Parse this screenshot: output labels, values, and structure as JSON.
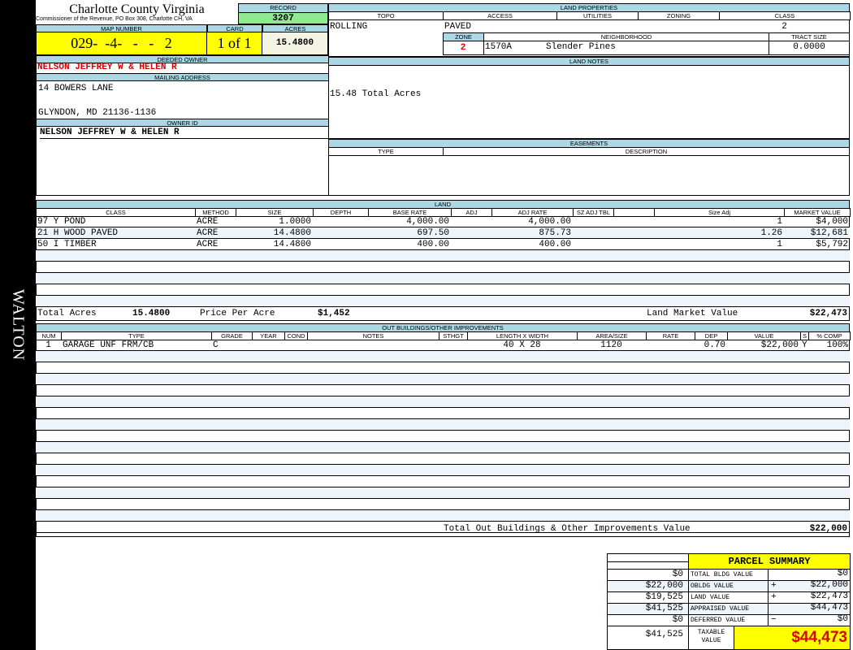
{
  "sidebar": {
    "district": "WALTON"
  },
  "header": {
    "county": "Charlotte County Virginia",
    "office": "Commissioner of the Revenue, PO Box 308, Charlotte CH, VA",
    "record_label": "RECORD",
    "record": "3207",
    "map_label": "MAP NUMBER",
    "map_number": "029-  -4-   -   -   2",
    "card_label": "CARD",
    "card": "1 of 1",
    "acres_label": "ACRES",
    "acres": "15.4800"
  },
  "owner": {
    "deeded_label": "DEEDED OWNER",
    "deeded": "NELSON JEFFREY W & HELEN R",
    "mailing_label": "MAILING ADDRESS",
    "address1": "14 BOWERS LANE",
    "address2": "GLYNDON, MD 21136-1136",
    "id_label": "OWNER ID",
    "id": "NELSON JEFFREY W & HELEN R"
  },
  "land_properties": {
    "title": "LAND PROPERTIES",
    "headers": [
      "TOPO",
      "ACCESS",
      "UTILITIES",
      "ZONING",
      "CLASS"
    ],
    "topo": "ROLLING",
    "access": "PAVED",
    "class": "2",
    "zone_label": "ZONE",
    "neighborhood_label": "NEIGHBORHOOD",
    "tract_label": "TRACT SIZE",
    "zone": "2",
    "neighborhood_code": "1570A",
    "neighborhood": "Slender Pines",
    "tract": "0.0000"
  },
  "land_notes": {
    "title": "LAND NOTES",
    "text": "15.48 Total Acres"
  },
  "easements": {
    "title": "EASEMENTS",
    "headers": [
      "TYPE",
      "DESCRIPTION"
    ]
  },
  "land": {
    "title": "LAND",
    "headers": [
      "CLASS",
      "METHOD",
      "SIZE",
      "DEPTH",
      "BASE RATE",
      "ADJ",
      "ADJ RATE",
      "SZ ADJ TBL",
      "",
      "Size Adj",
      "MARKET VALUE"
    ],
    "rows": [
      [
        "97 Y POND",
        "ACRE",
        "1.0000",
        "",
        "4,000.00",
        "",
        "4,000.00",
        "",
        "",
        "1",
        "$4,000"
      ],
      [
        "21 H WOOD PAVED",
        "ACRE",
        "14.4800",
        "",
        "697.50",
        "",
        "875.73",
        "",
        "",
        "1.26",
        "$12,681"
      ],
      [
        "50 I TIMBER",
        "ACRE",
        "14.4800",
        "",
        "400.00",
        "",
        "400.00",
        "",
        "",
        "1",
        "$5,792"
      ]
    ],
    "total_acres_label": "Total Acres",
    "total_acres": "15.4800",
    "ppa_label": "Price Per Acre",
    "ppa": "$1,452",
    "market_label": "Land Market Value",
    "market": "$22,473"
  },
  "outbuildings": {
    "title": "OUT BUILDINGS/OTHER IMPROVEMENTS",
    "headers": [
      "NUM",
      "TYPE",
      "GRADE",
      "YEAR",
      "COND",
      "NOTES",
      "STHGT",
      "LENGTH X WIDTH",
      "AREA/SIZE",
      "RATE",
      "DEP",
      "VALUE",
      "S",
      "% COMP"
    ],
    "rows": [
      [
        "1",
        "GARAGE UNF FRM/CB",
        "C",
        "",
        "",
        "",
        "",
        "40 X 28",
        "1120",
        "",
        "0.70",
        "$22,000",
        "Y",
        "100%"
      ]
    ],
    "total_label": "Total Out Buildings & Other Improvements Value",
    "total": "$22,000"
  },
  "summary": {
    "title": "PARCEL SUMMARY",
    "rows": [
      {
        "left": "$0",
        "label": "TOTAL BLDG VALUE",
        "op": "",
        "value": "$0"
      },
      {
        "left": "$22,000",
        "label": "OBLDG VALUE",
        "op": "+",
        "value": "$22,000"
      },
      {
        "left": "$19,525",
        "label": "LAND VALUE",
        "op": "+",
        "value": "$22,473"
      },
      {
        "left": "$41,525",
        "label": "APPRAISED VALUE",
        "op": "",
        "value": "$44,473"
      },
      {
        "left": "$0",
        "label": "DEFERRED VALUE",
        "op": "−",
        "value": "$0"
      }
    ],
    "taxable_left": "$41,525",
    "taxable_label": "TAXABLE VALUE",
    "taxable": "$44,473"
  },
  "colors": {
    "header_bg": "#acd8e6",
    "highlight": "#ffff00",
    "record_bg": "#90e890",
    "owner_red": "#dd0000"
  }
}
